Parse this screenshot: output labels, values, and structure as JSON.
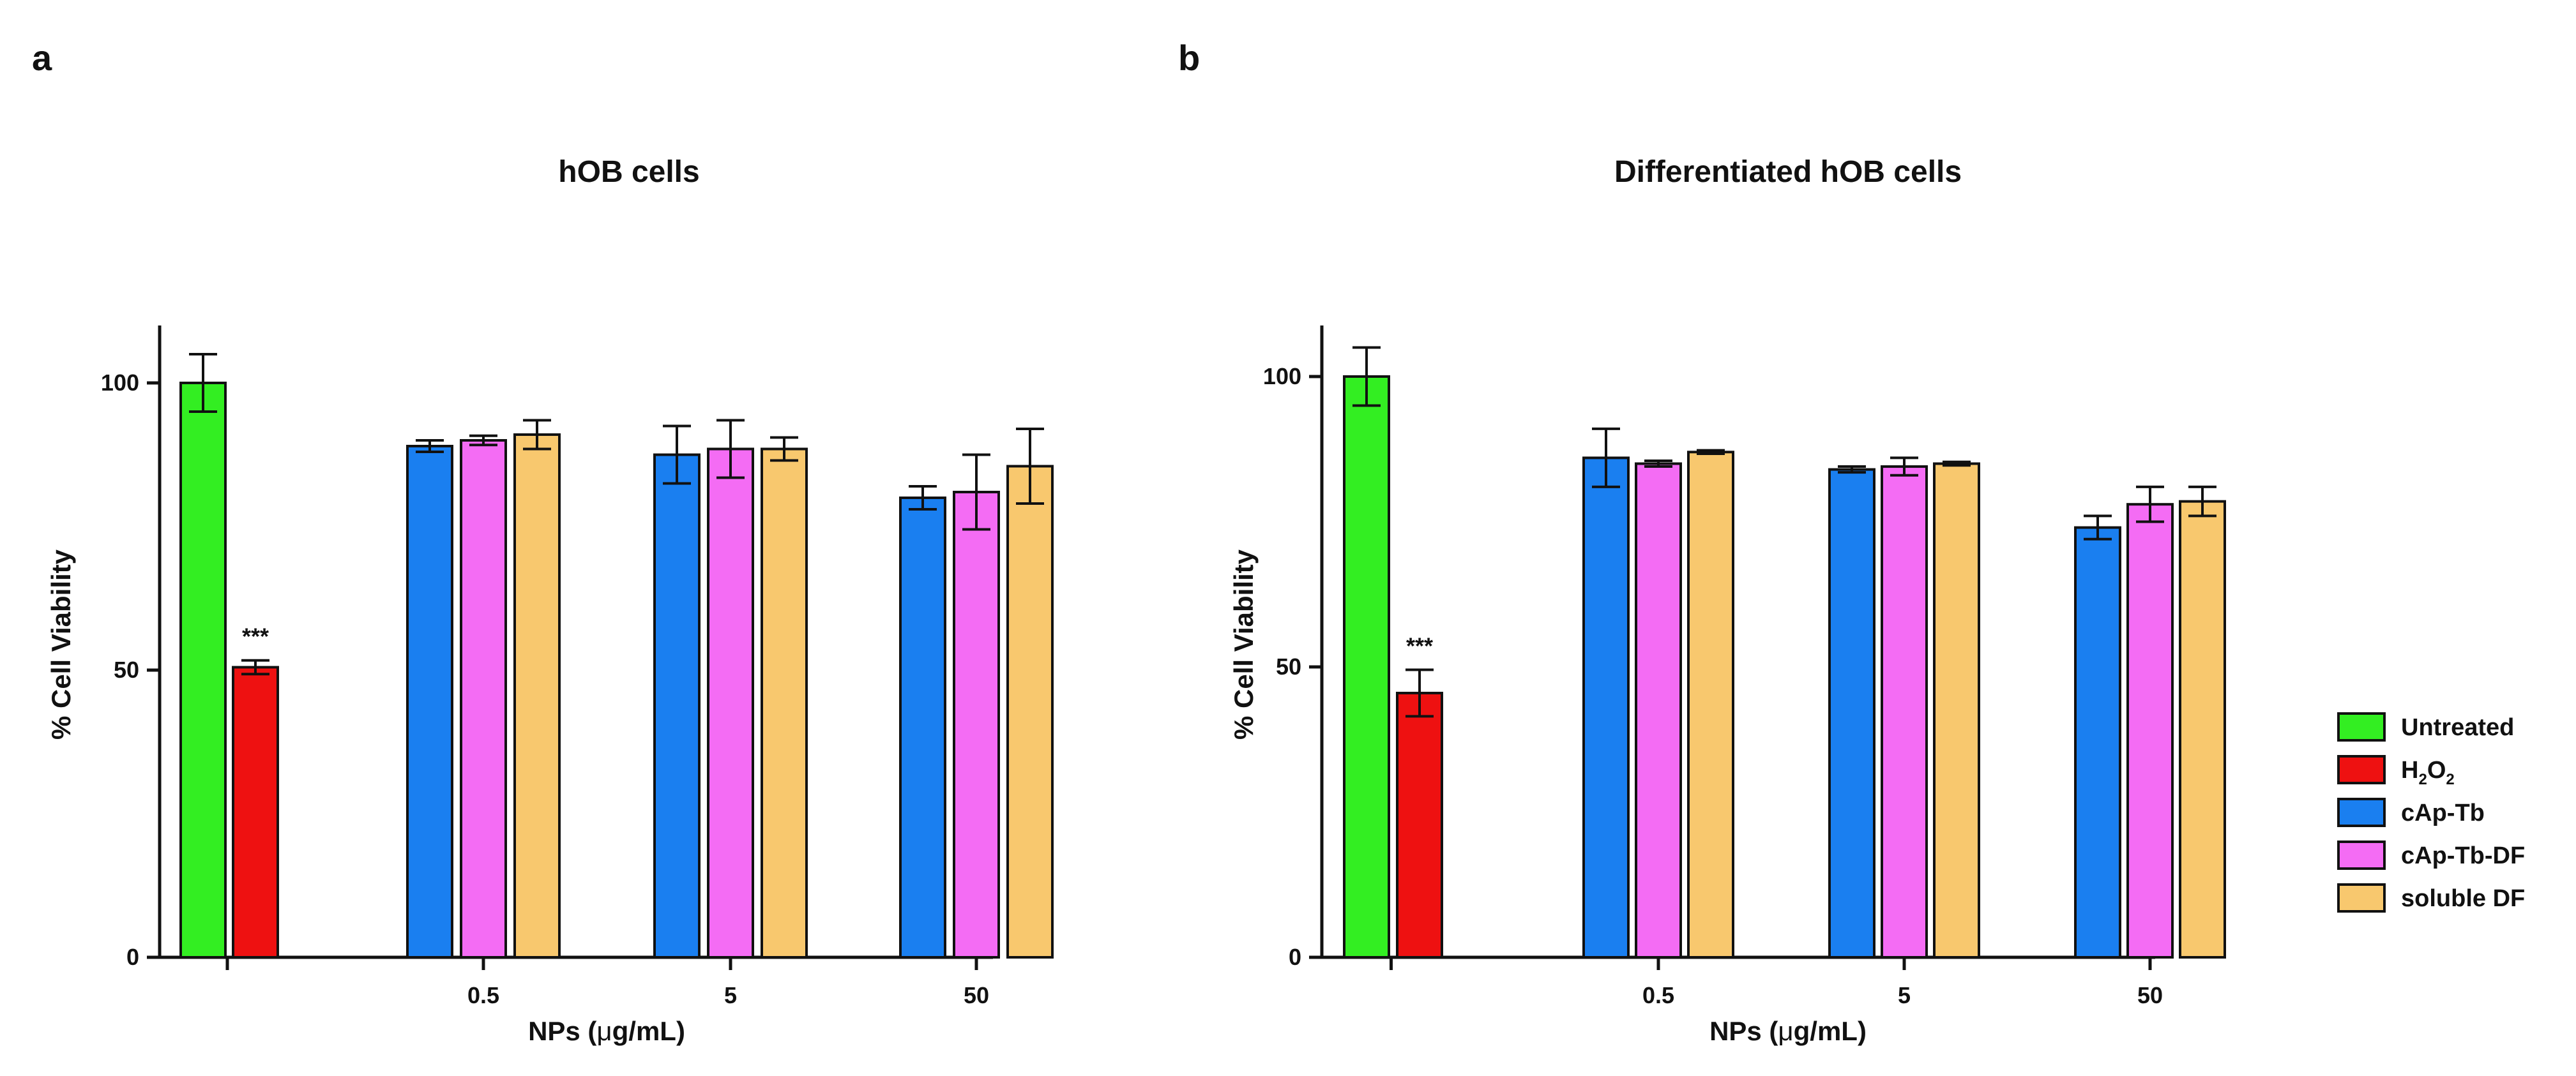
{
  "figure": {
    "colors": {
      "Untreated": "#33ee22",
      "H2O2": "#ee1111",
      "cAp-Tb": "#1a7ff0",
      "cAp-Tb-DF": "#f46cf4",
      "soluble DF": "#f8c86e"
    },
    "legend": [
      {
        "key": "Untreated",
        "label": "Untreated"
      },
      {
        "key": "H2O2",
        "label": "H",
        "sub1": "2",
        "mid": "O",
        "sub2": "2"
      },
      {
        "key": "cAp-Tb",
        "label": "cAp-Tb"
      },
      {
        "key": "cAp-Tb-DF",
        "label": "cAp-Tb-DF"
      },
      {
        "key": "soluble DF",
        "label": "soluble DF"
      }
    ]
  },
  "chart_data": [
    {
      "panel": "a",
      "type": "bar",
      "title": "hOB cells",
      "ylabel": "% Cell Viability",
      "xlabel_prefix": "NPs  (",
      "xlabel_mu": "μ",
      "xlabel_suffix": "g/mL)",
      "ylim": [
        0,
        110
      ],
      "yticks": [
        0,
        50,
        100
      ],
      "controls": [
        {
          "key": "Untreated",
          "value": 100,
          "err": 5
        },
        {
          "key": "H2O2",
          "value": 50.5,
          "err": 1.2,
          "annotation": "***"
        }
      ],
      "categories": [
        "0.5",
        "5",
        "50"
      ],
      "series": [
        {
          "key": "cAp-Tb",
          "values": [
            89,
            87.5,
            80
          ],
          "errors": [
            1,
            5,
            2
          ]
        },
        {
          "key": "cAp-Tb-DF",
          "values": [
            90,
            88.5,
            81
          ],
          "errors": [
            0.8,
            5,
            6.5
          ]
        },
        {
          "key": "soluble DF",
          "values": [
            91,
            88.5,
            85.5
          ],
          "errors": [
            2.5,
            2,
            6.5
          ]
        }
      ]
    },
    {
      "panel": "b",
      "type": "bar",
      "title": "Differentiated hOB cells",
      "ylabel": "% Cell Viability",
      "xlabel_prefix": "NPs  (",
      "xlabel_mu": "μ",
      "xlabel_suffix": "g/mL)",
      "ylim": [
        0,
        110
      ],
      "yticks": [
        0,
        50,
        100
      ],
      "controls": [
        {
          "key": "Untreated",
          "value": 100,
          "err": 5
        },
        {
          "key": "H2O2",
          "value": 45.5,
          "err": 4,
          "annotation": "***"
        }
      ],
      "categories": [
        "0.5",
        "5",
        "50"
      ],
      "series": [
        {
          "key": "cAp-Tb",
          "values": [
            86,
            84,
            74
          ],
          "errors": [
            5,
            0.5,
            2
          ]
        },
        {
          "key": "cAp-Tb-DF",
          "values": [
            85,
            84.5,
            78
          ],
          "errors": [
            0.5,
            1.5,
            3
          ]
        },
        {
          "key": "soluble DF",
          "values": [
            87,
            85,
            78.5
          ],
          "errors": [
            0.3,
            0.3,
            2.5
          ]
        }
      ]
    }
  ]
}
